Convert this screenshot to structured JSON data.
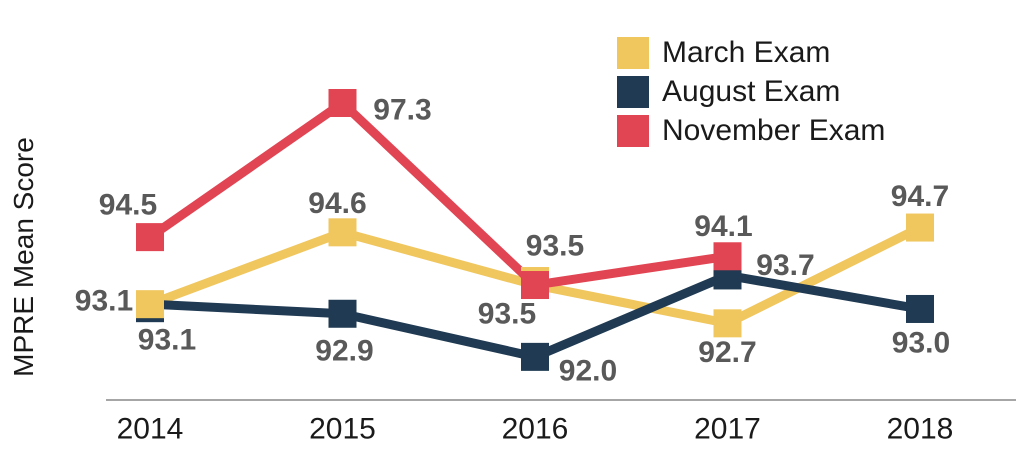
{
  "chart_data": {
    "type": "line",
    "title": "",
    "ylabel": "MPRE Mean Score",
    "xlabel": "",
    "categories": [
      "2014",
      "2015",
      "2016",
      "2017",
      "2018"
    ],
    "ylim": [
      91.5,
      97.9
    ],
    "grid": false,
    "legend_position": "top-right",
    "value_decimals": 1,
    "colors": {
      "label_text": "#595959",
      "tick_text": "#1A1A1A",
      "axis_line": "#A6A6A6",
      "background": "#FFFFFF"
    },
    "series": [
      {
        "name": "March Exam",
        "color": "#F0C65E",
        "values": [
          93.1,
          94.6,
          93.5,
          92.7,
          94.7
        ],
        "label_offsets": [
          [
            -46,
            -3
          ],
          [
            -5,
            -29
          ],
          [
            -28,
            29
          ],
          [
            0,
            29
          ],
          [
            0,
            -31
          ]
        ],
        "marker_nudge_y": [
          0,
          0,
          -4,
          0,
          0
        ]
      },
      {
        "name": "August Exam",
        "color": "#1F3A52",
        "values": [
          93.1,
          92.9,
          92.0,
          93.7,
          93.0
        ],
        "label_offsets": [
          [
            17,
            36
          ],
          [
            2,
            37
          ],
          [
            53,
            14
          ],
          [
            58,
            -10
          ],
          [
            1,
            34
          ]
        ],
        "marker_nudge_y": [
          4,
          0,
          0,
          0,
          0
        ]
      },
      {
        "name": "November Exam",
        "color": "#E14453",
        "values": [
          94.5,
          97.3,
          93.5,
          94.1,
          null
        ],
        "label_offsets": [
          [
            -22,
            -32
          ],
          [
            60,
            7
          ],
          [
            20,
            -39
          ],
          [
            -4,
            -30
          ],
          null
        ],
        "marker_nudge_y": [
          0,
          0,
          0,
          0,
          0
        ]
      }
    ]
  }
}
